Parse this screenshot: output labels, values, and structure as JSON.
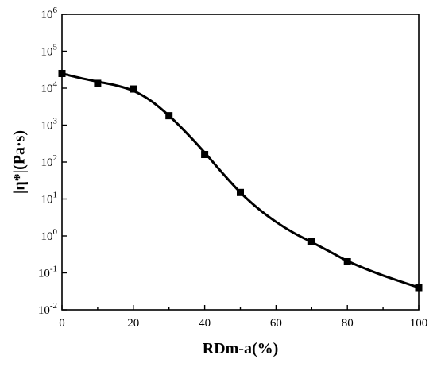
{
  "chart_data": {
    "type": "scatter",
    "xlabel": "RDm-a(%)",
    "ylabel": "|η*|(Pa·s)",
    "xlim": [
      0,
      100
    ],
    "ylim": [
      0.01,
      1000000
    ],
    "yscale": "log",
    "x_ticks": [
      "0",
      "20",
      "40",
      "60",
      "80",
      "100"
    ],
    "y_ticks": [
      {
        "base": "10",
        "exp": "-2",
        "value": 0.01
      },
      {
        "base": "10",
        "exp": "-1",
        "value": 0.1
      },
      {
        "base": "10",
        "exp": "0",
        "value": 1
      },
      {
        "base": "10",
        "exp": "1",
        "value": 10
      },
      {
        "base": "10",
        "exp": "2",
        "value": 100
      },
      {
        "base": "10",
        "exp": "3",
        "value": 1000
      },
      {
        "base": "10",
        "exp": "4",
        "value": 10000
      },
      {
        "base": "10",
        "exp": "5",
        "value": 100000
      },
      {
        "base": "10",
        "exp": "6",
        "value": 1000000
      }
    ],
    "points": [
      {
        "x": 0,
        "y": 25000
      },
      {
        "x": 10,
        "y": 13500
      },
      {
        "x": 20,
        "y": 9500
      },
      {
        "x": 30,
        "y": 1800
      },
      {
        "x": 40,
        "y": 160
      },
      {
        "x": 50,
        "y": 15
      },
      {
        "x": 70,
        "y": 0.7
      },
      {
        "x": 80,
        "y": 0.2
      },
      {
        "x": 100,
        "y": 0.04
      }
    ],
    "fit_curve": [
      {
        "x": 0,
        "y": 25000
      },
      {
        "x": 5,
        "y": 19000
      },
      {
        "x": 10,
        "y": 15000
      },
      {
        "x": 15,
        "y": 12000
      },
      {
        "x": 20,
        "y": 8500
      },
      {
        "x": 25,
        "y": 4500
      },
      {
        "x": 30,
        "y": 1800
      },
      {
        "x": 35,
        "y": 600
      },
      {
        "x": 40,
        "y": 180
      },
      {
        "x": 45,
        "y": 50
      },
      {
        "x": 50,
        "y": 15
      },
      {
        "x": 55,
        "y": 5.5
      },
      {
        "x": 60,
        "y": 2.4
      },
      {
        "x": 65,
        "y": 1.2
      },
      {
        "x": 70,
        "y": 0.68
      },
      {
        "x": 75,
        "y": 0.38
      },
      {
        "x": 80,
        "y": 0.21
      },
      {
        "x": 85,
        "y": 0.13
      },
      {
        "x": 90,
        "y": 0.085
      },
      {
        "x": 95,
        "y": 0.058
      },
      {
        "x": 100,
        "y": 0.04
      }
    ],
    "grid": false,
    "marker": "square",
    "color": "#000000"
  }
}
